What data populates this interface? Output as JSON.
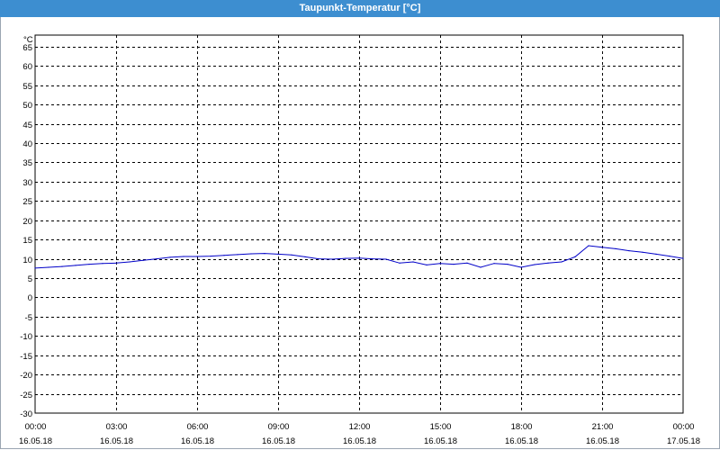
{
  "window": {
    "title": "Taupunkt-Temperatur [°C]"
  },
  "chart_data": {
    "type": "line",
    "title": "Taupunkt-Temperatur [°C]",
    "ylabel": "°C",
    "xlabel": "",
    "ylim": [
      -30,
      68
    ],
    "yticks": [
      65,
      60,
      55,
      50,
      45,
      40,
      35,
      30,
      25,
      20,
      15,
      10,
      5,
      0,
      -5,
      -10,
      -15,
      -20,
      -25,
      -30
    ],
    "xlim": [
      "16.05.18 00:00",
      "17.05.18 00:00"
    ],
    "xticks": [
      {
        "time": "00:00",
        "date": "16.05.18"
      },
      {
        "time": "03:00",
        "date": "16.05.18"
      },
      {
        "time": "06:00",
        "date": "16.05.18"
      },
      {
        "time": "09:00",
        "date": "16.05.18"
      },
      {
        "time": "12:00",
        "date": "16.05.18"
      },
      {
        "time": "15:00",
        "date": "16.05.18"
      },
      {
        "time": "18:00",
        "date": "16.05.18"
      },
      {
        "time": "21:00",
        "date": "16.05.18"
      },
      {
        "time": "00:00",
        "date": "17.05.18"
      }
    ],
    "grid": true,
    "line_color": "#0000c8",
    "series": [
      {
        "x": [
          "00:00",
          "00:30",
          "01:00",
          "01:30",
          "02:00",
          "02:30",
          "03:00",
          "03:30",
          "04:00",
          "04:30",
          "05:00",
          "05:30",
          "06:00",
          "06:30",
          "07:00",
          "07:30",
          "08:00",
          "08:30",
          "09:00",
          "09:30",
          "10:00",
          "10:30",
          "11:00",
          "11:30",
          "12:00",
          "12:30",
          "13:00",
          "13:30",
          "14:00",
          "14:30",
          "15:00",
          "15:30",
          "16:00",
          "16:30",
          "17:00",
          "17:30",
          "18:00",
          "18:30",
          "19:00",
          "19:30",
          "20:00",
          "20:30",
          "21:00",
          "21:30",
          "22:00",
          "22:30",
          "23:00",
          "23:30",
          "24:00"
        ],
        "values": [
          7.6,
          7.8,
          8.0,
          8.3,
          8.6,
          8.8,
          8.9,
          9.2,
          9.6,
          10.0,
          10.4,
          10.6,
          10.6,
          10.7,
          10.9,
          11.1,
          11.3,
          11.4,
          11.2,
          11.0,
          10.5,
          10.0,
          9.9,
          10.1,
          10.2,
          10.0,
          9.9,
          8.9,
          9.2,
          8.4,
          8.8,
          8.6,
          8.9,
          7.8,
          8.8,
          8.6,
          7.8,
          8.5,
          8.9,
          9.2,
          10.5,
          13.4,
          13.0,
          12.6,
          12.1,
          11.7,
          11.2,
          10.7,
          10.1
        ]
      }
    ]
  }
}
